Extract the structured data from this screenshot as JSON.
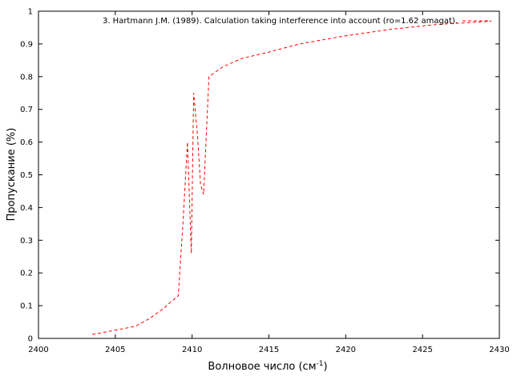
{
  "chart_data": {
    "type": "line",
    "xlabel": "Волновое число (см",
    "xlabel_sup": "-1",
    "xlabel_close": ")",
    "ylabel": "Пропускание (%)",
    "xlim": [
      2400,
      2430
    ],
    "ylim": [
      0,
      1
    ],
    "xticks": [
      "2400",
      "2405",
      "2410",
      "2415",
      "2420",
      "2425",
      "2430"
    ],
    "yticks": [
      "0",
      "0.1",
      "0.2",
      "0.3",
      "0.4",
      "0.5",
      "0.6",
      "0.7",
      "0.8",
      "0.9",
      "1"
    ],
    "grid": false,
    "legend_position": "top-right",
    "series": [
      {
        "name": "3. Hartmann J.M. (1989). Calculation taking interference into account (ro=1.62 amagat).",
        "color": "#ff0000",
        "dash": "dashed",
        "x": [
          2403.5,
          2405,
          2406.3,
          2407.2,
          2408.1,
          2408.7,
          2409.1,
          2409.4,
          2409.7,
          2409.95,
          2410.1,
          2410.35,
          2410.55,
          2410.75,
          2411.1,
          2412,
          2413.2,
          2415,
          2417,
          2420,
          2423,
          2426,
          2428,
          2429.5
        ],
        "y": [
          0.012,
          0.025,
          0.037,
          0.06,
          0.09,
          0.115,
          0.13,
          0.35,
          0.6,
          0.26,
          0.75,
          0.62,
          0.47,
          0.44,
          0.8,
          0.83,
          0.855,
          0.875,
          0.9,
          0.925,
          0.945,
          0.96,
          0.965,
          0.97
        ]
      }
    ]
  }
}
